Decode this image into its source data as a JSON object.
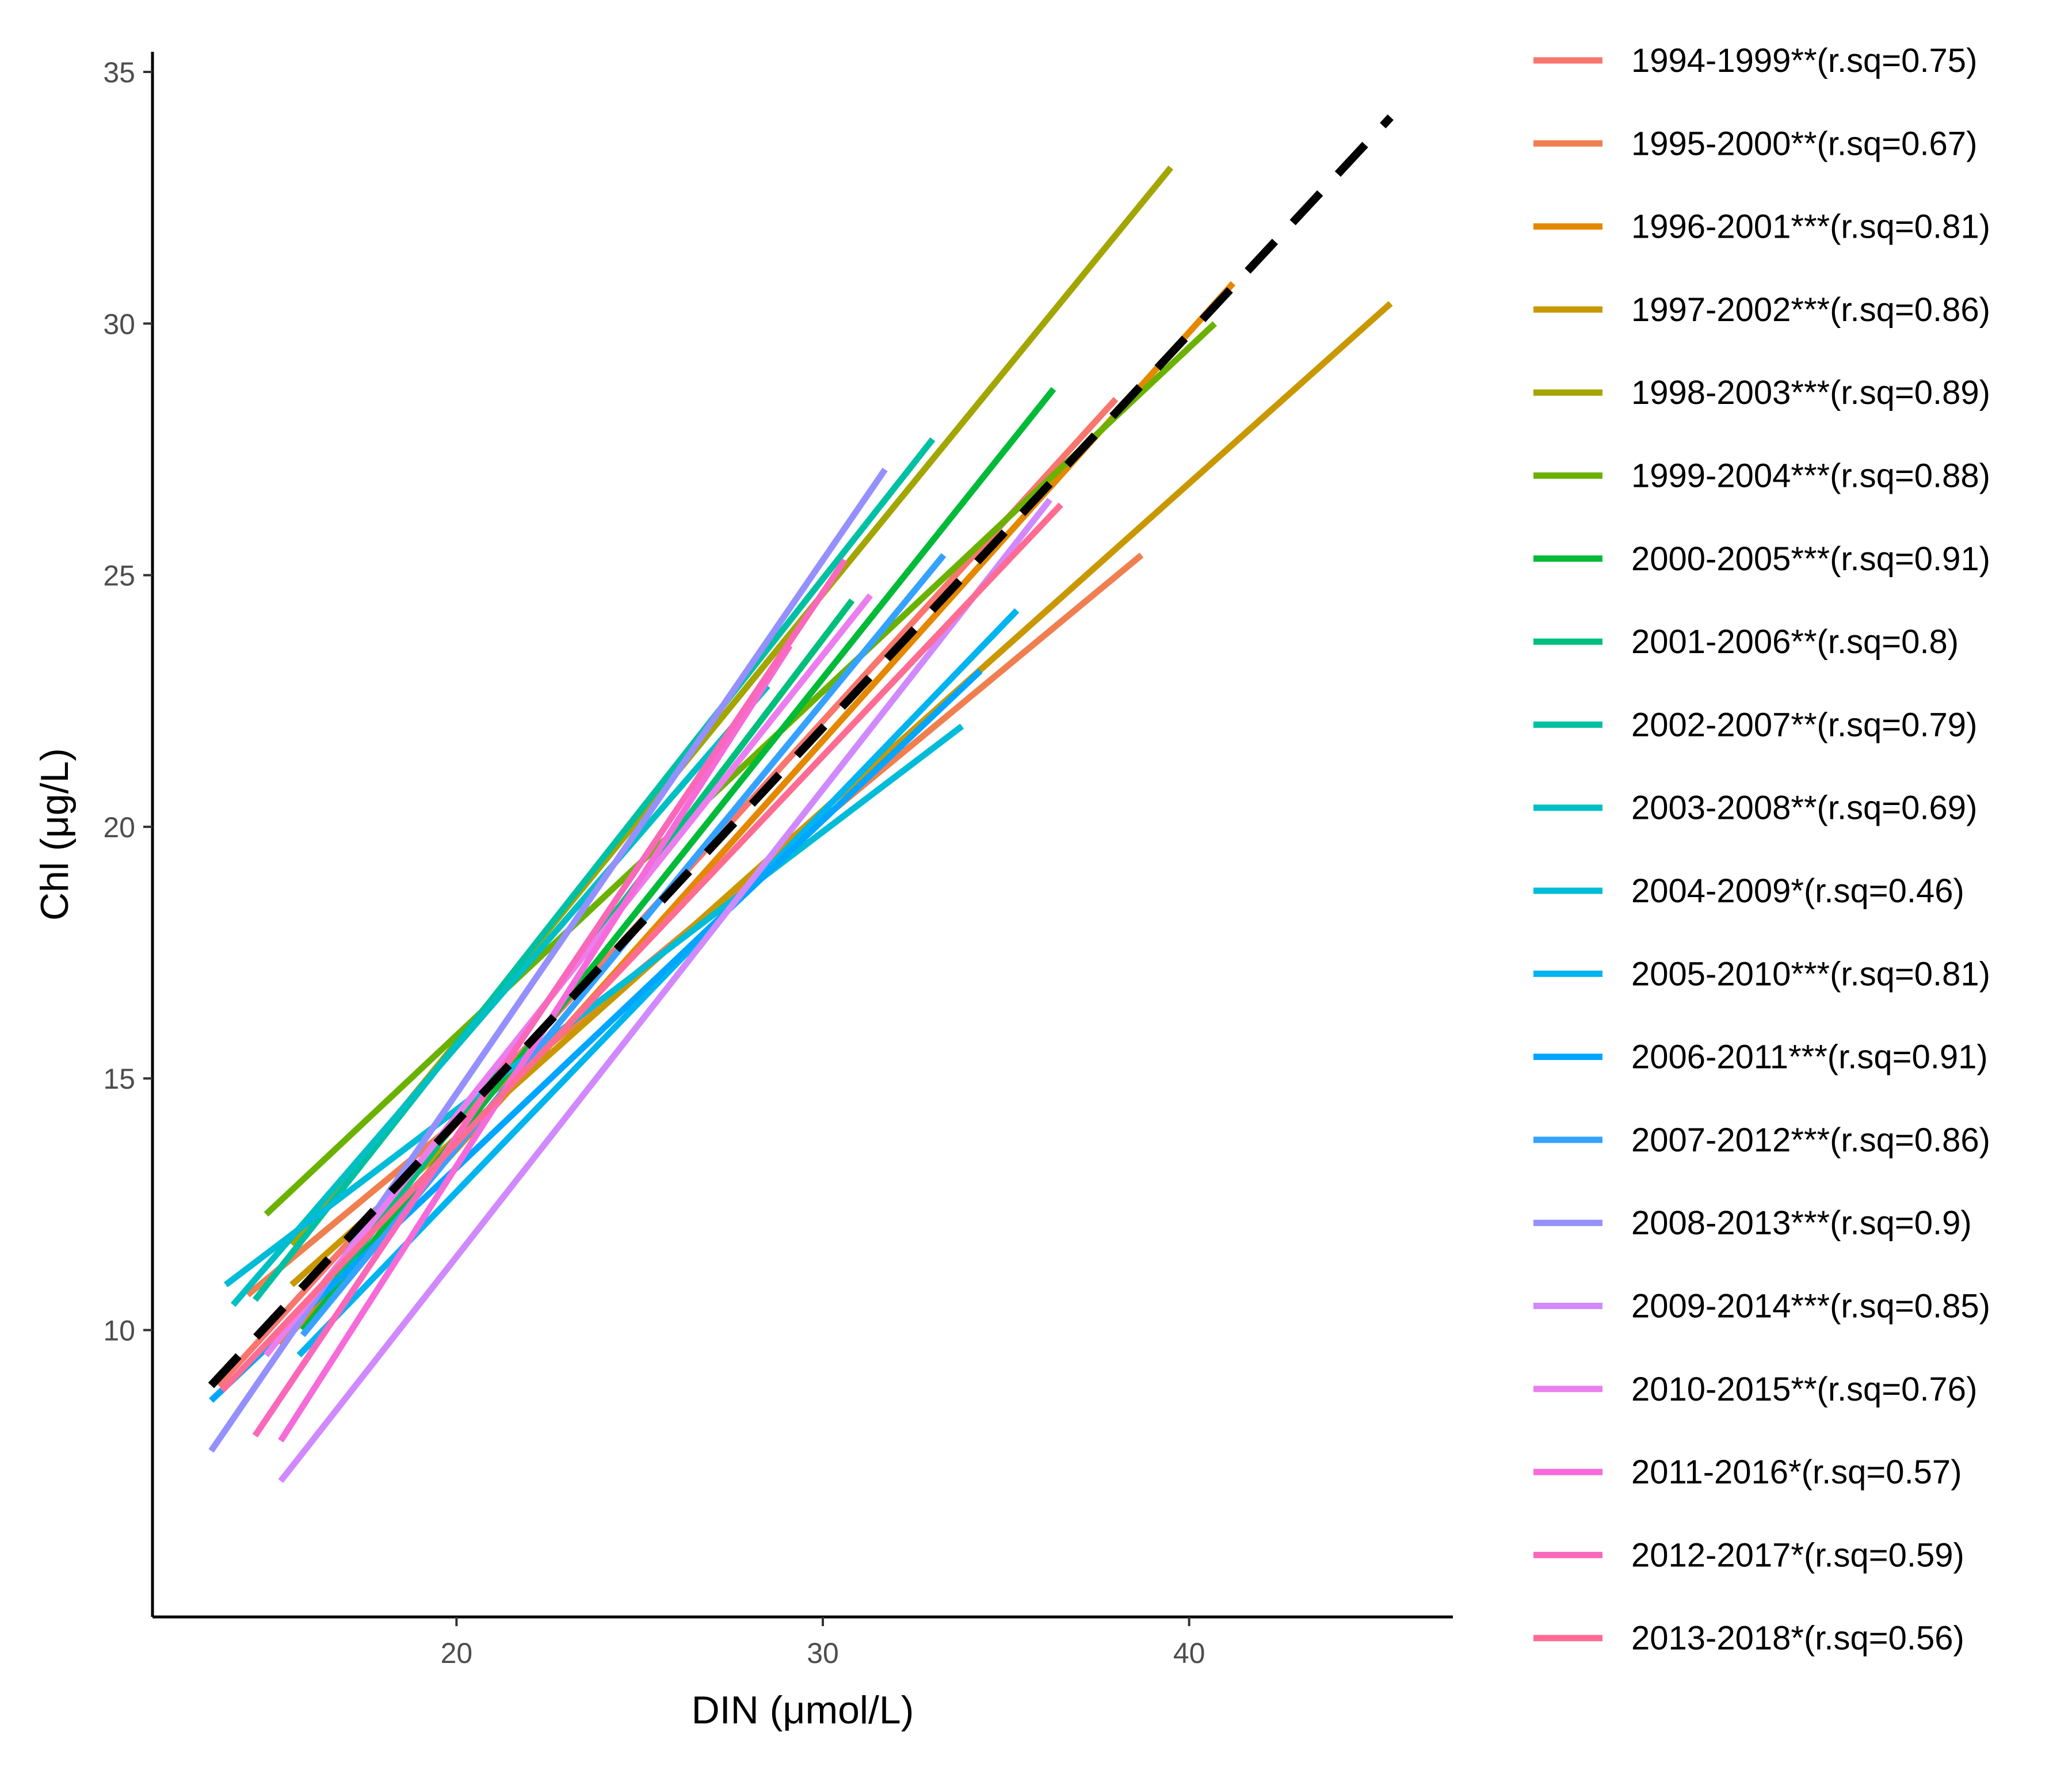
{
  "chart_data": {
    "type": "line",
    "title": "",
    "xlabel": "DIN (μmol/L)",
    "ylabel": "Chl (μg/L)",
    "xlim": [
      11.7,
      47.2
    ],
    "ylim": [
      4.3,
      35.4
    ],
    "x_ticks": [
      20,
      30,
      40
    ],
    "y_ticks": [
      10,
      15,
      20,
      25,
      30,
      35
    ],
    "grid": false,
    "legend_position": "right",
    "series": [
      {
        "name": "1994-1999**(r.sq=0.75)",
        "color": "#F8766D",
        "x": [
          13.5,
          38.0
        ],
        "y": [
          8.9,
          28.5
        ]
      },
      {
        "name": "1995-2000**(r.sq=0.67)",
        "color": "#F07F4F",
        "x": [
          14.3,
          38.7
        ],
        "y": [
          10.7,
          25.4
        ]
      },
      {
        "name": "1996-2001***(r.sq=0.81)",
        "color": "#E48800",
        "x": [
          15.2,
          41.2
        ],
        "y": [
          9.7,
          30.8
        ]
      },
      {
        "name": "1997-2002***(r.sq=0.86)",
        "color": "#C99800",
        "x": [
          15.5,
          45.5
        ],
        "y": [
          10.9,
          30.4
        ]
      },
      {
        "name": "1998-2003***(r.sq=0.89)",
        "color": "#A3A500",
        "x": [
          15.5,
          39.5
        ],
        "y": [
          11.7,
          33.1
        ]
      },
      {
        "name": "1999-2004***(r.sq=0.88)",
        "color": "#6BB100",
        "x": [
          14.8,
          40.7
        ],
        "y": [
          12.3,
          30.0
        ]
      },
      {
        "name": "2000-2005***(r.sq=0.91)",
        "color": "#00BA38",
        "x": [
          15.8,
          36.3
        ],
        "y": [
          10.0,
          28.7
        ]
      },
      {
        "name": "2001-2006**(r.sq=0.8)",
        "color": "#00BF7D",
        "x": [
          16.5,
          30.8
        ],
        "y": [
          10.8,
          24.5
        ]
      },
      {
        "name": "2002-2007**(r.sq=0.79)",
        "color": "#00C0A3",
        "x": [
          14.5,
          33.0
        ],
        "y": [
          10.6,
          27.7
        ]
      },
      {
        "name": "2003-2008**(r.sq=0.69)",
        "color": "#00BFC4",
        "x": [
          13.9,
          28.5
        ],
        "y": [
          10.5,
          22.8
        ]
      },
      {
        "name": "2004-2009*(r.sq=0.46)",
        "color": "#00BCD8",
        "x": [
          13.7,
          33.8
        ],
        "y": [
          10.9,
          22.0
        ]
      },
      {
        "name": "2005-2010***(r.sq=0.81)",
        "color": "#00B4EF",
        "x": [
          15.7,
          35.3
        ],
        "y": [
          9.5,
          24.3
        ]
      },
      {
        "name": "2006-2011***(r.sq=0.91)",
        "color": "#00A5FF",
        "x": [
          13.3,
          34.3
        ],
        "y": [
          8.6,
          23.1
        ]
      },
      {
        "name": "2007-2012***(r.sq=0.86)",
        "color": "#35A2FF",
        "x": [
          15.8,
          33.3
        ],
        "y": [
          9.9,
          25.4
        ]
      },
      {
        "name": "2008-2013***(r.sq=0.9)",
        "color": "#9590FF",
        "x": [
          13.3,
          31.7
        ],
        "y": [
          7.6,
          27.1
        ]
      },
      {
        "name": "2009-2014***(r.sq=0.85)",
        "color": "#D089FF",
        "x": [
          15.2,
          36.2
        ],
        "y": [
          7.0,
          26.5
        ]
      },
      {
        "name": "2010-2015**(r.sq=0.76)",
        "color": "#EB7EEF",
        "x": [
          14.8,
          31.3
        ],
        "y": [
          9.5,
          24.6
        ]
      },
      {
        "name": "2011-2016*(r.sq=0.57)",
        "color": "#F66BDA",
        "x": [
          15.2,
          29.1
        ],
        "y": [
          7.8,
          23.6
        ]
      },
      {
        "name": "2012-2017*(r.sq=0.59)",
        "color": "#FA68BA",
        "x": [
          14.5,
          30.6
        ],
        "y": [
          7.9,
          25.3
        ]
      },
      {
        "name": "2013-2018*(r.sq=0.56)",
        "color": "#FF6C93",
        "x": [
          13.6,
          36.5
        ],
        "y": [
          8.8,
          26.4
        ]
      }
    ],
    "overall_trend": {
      "style": "dashed",
      "color": "#000000",
      "x": [
        13.3,
        45.5
      ],
      "y": [
        8.9,
        34.1
      ]
    }
  }
}
